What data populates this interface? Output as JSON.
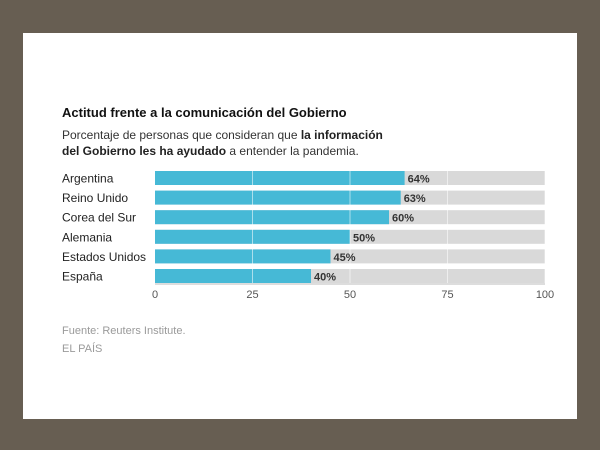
{
  "chart_data": {
    "type": "bar",
    "orientation": "horizontal",
    "title": "Actitud frente a la comunicación del Gobierno",
    "subtitle": {
      "before": "Porcentaje de personas que consideran que ",
      "bold_line1": "la información",
      "bold_line2": "del Gobierno les ha ayudado",
      "after": " a entender la pandemia."
    },
    "categories": [
      "Argentina",
      "Reino Unido",
      "Corea del Sur",
      "Alemania",
      "Estados Unidos",
      "España"
    ],
    "values": [
      64,
      63,
      60,
      50,
      45,
      40
    ],
    "value_labels": [
      "64%",
      "63%",
      "60%",
      "50%",
      "45%",
      "40%"
    ],
    "xlim": [
      0,
      100
    ],
    "xticks": [
      0,
      25,
      50,
      75,
      100
    ],
    "grid": true,
    "bar_color": "#46b9d6",
    "track_color": "#d9d9d9"
  },
  "footer": {
    "source": "Fuente: Reuters Institute.",
    "brand": "EL PAÍS"
  }
}
